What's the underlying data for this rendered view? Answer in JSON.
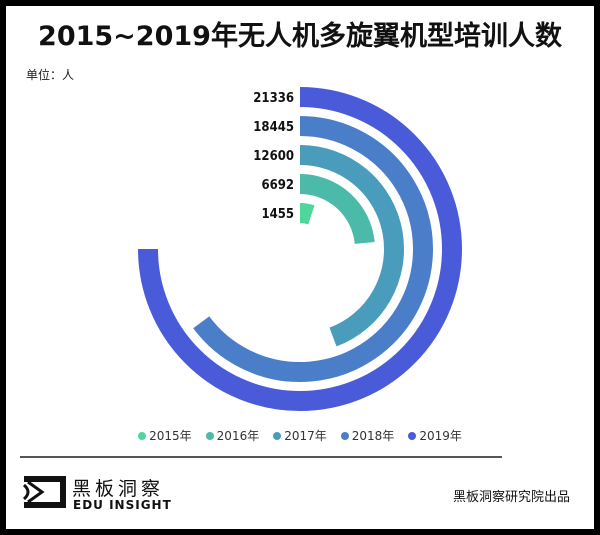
{
  "title": "2015~2019年无人机多旋翼机型培训人数",
  "unit_label": "单位：人",
  "chart_data": {
    "type": "radial-bar",
    "title": "2015~2019年无人机多旋翼机型培训人数",
    "unit": "单位：人",
    "categories": [
      "2015年",
      "2016年",
      "2017年",
      "2018年",
      "2019年"
    ],
    "values": [
      1455,
      6692,
      12600,
      18445,
      21336
    ],
    "value_labels": [
      "1455",
      "6692",
      "12600",
      "18445",
      "21336"
    ],
    "colors": [
      "#4fd69a",
      "#4cbaa8",
      "#4a9cbc",
      "#4a7ec9",
      "#4a5bd9"
    ],
    "legend_position": "bottom",
    "grid": false
  },
  "footer": {
    "brand_cn": "黑板洞察",
    "brand_en": "EDU INSIGHT",
    "credit": "黑板洞察研究院出品"
  }
}
